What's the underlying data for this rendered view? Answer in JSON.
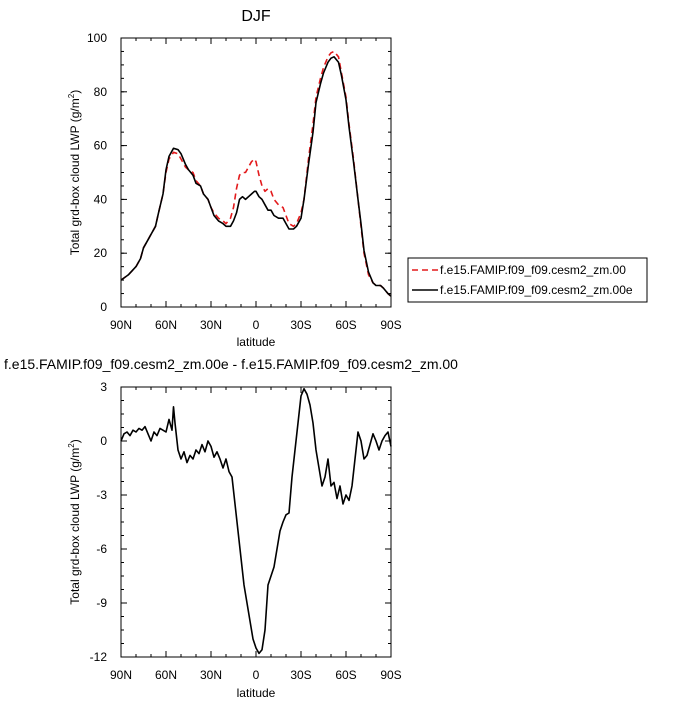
{
  "chart_data": [
    {
      "type": "line",
      "title": "DJF",
      "xlabel": "latitude",
      "ylabel": "Total grd-box cloud LWP (g/m",
      "ylabel_sup": "2",
      "ylabel_end": ")",
      "xlim": [
        90,
        -90
      ],
      "ylim": [
        0,
        100
      ],
      "x_ticks": [
        90,
        60,
        30,
        0,
        -30,
        -60,
        -90
      ],
      "x_tick_labels": [
        "90N",
        "60N",
        "30N",
        "0",
        "30S",
        "60S",
        "90S"
      ],
      "y_ticks": [
        0,
        20,
        40,
        60,
        80,
        100
      ],
      "y_tick_labels": [
        "0",
        "20",
        "40",
        "60",
        "80",
        "100"
      ],
      "legend_placement": "right",
      "series": [
        {
          "name": "f.e15.FAMIP.f09_f09.cesm2_zm.00",
          "color": "#e31a1c",
          "dash": "dashed",
          "x": [
            90,
            85,
            80,
            77,
            75,
            72,
            70,
            67,
            65,
            62,
            60,
            58,
            55,
            52,
            50,
            47,
            45,
            42,
            40,
            37,
            35,
            32,
            30,
            28,
            25,
            22,
            20,
            17,
            15,
            13,
            11,
            9,
            7,
            5,
            3,
            1,
            0,
            -2,
            -4,
            -6,
            -8,
            -10,
            -12,
            -15,
            -18,
            -20,
            -22,
            -25,
            -27,
            -30,
            -32,
            -35,
            -38,
            -40,
            -43,
            -45,
            -48,
            -50,
            -52,
            -55,
            -57,
            -60,
            -62,
            -65,
            -68,
            -70,
            -72,
            -75,
            -78,
            -80,
            -83,
            -85,
            -88,
            -90
          ],
          "y": [
            10,
            12,
            15,
            18,
            22,
            25,
            27,
            30,
            35,
            42,
            50,
            55,
            57.5,
            57,
            55,
            52,
            51,
            50,
            47,
            45,
            42,
            40,
            37,
            35,
            33,
            32,
            31,
            33,
            37,
            44,
            49,
            50,
            50,
            52,
            54,
            55,
            54,
            49,
            45,
            43,
            44,
            43,
            40,
            38,
            37,
            34,
            31,
            30,
            31,
            35,
            40,
            55,
            68,
            78,
            85,
            89,
            93,
            94.5,
            95,
            93,
            87,
            78,
            68,
            55,
            40,
            30,
            20,
            12,
            9,
            8,
            8,
            7,
            5,
            4
          ]
        },
        {
          "name": "f.e15.FAMIP.f09_f09.cesm2_zm.00e",
          "color": "#000000",
          "dash": "solid",
          "x": [
            90,
            85,
            80,
            77,
            75,
            72,
            70,
            67,
            65,
            62,
            60,
            58,
            55,
            52,
            50,
            47,
            45,
            42,
            40,
            37,
            35,
            32,
            30,
            28,
            25,
            22,
            20,
            17,
            15,
            13,
            11,
            9,
            7,
            5,
            3,
            1,
            0,
            -2,
            -4,
            -6,
            -8,
            -10,
            -12,
            -15,
            -18,
            -20,
            -22,
            -25,
            -27,
            -30,
            -32,
            -35,
            -38,
            -40,
            -43,
            -45,
            -48,
            -50,
            -52,
            -55,
            -57,
            -60,
            -62,
            -65,
            -68,
            -70,
            -72,
            -75,
            -78,
            -80,
            -83,
            -85,
            -88,
            -90
          ],
          "y": [
            10,
            12,
            15,
            18,
            22,
            25,
            27,
            30,
            35,
            42,
            51,
            56,
            59,
            58.5,
            57,
            53,
            51,
            49,
            46,
            45,
            42,
            40,
            37,
            34,
            32,
            31,
            30,
            30,
            32,
            35,
            40,
            41,
            40,
            41,
            42,
            43,
            43,
            41,
            40,
            38,
            36,
            36,
            34,
            33,
            33,
            31,
            29,
            29,
            30,
            33,
            40,
            53,
            65,
            76,
            83,
            87,
            91,
            92.5,
            93,
            91,
            86,
            77,
            67,
            54,
            40,
            31,
            21,
            13,
            9,
            8,
            8,
            7,
            5,
            4
          ]
        }
      ]
    },
    {
      "type": "line",
      "title": "f.e15.FAMIP.f09_f09.cesm2_zm.00e - f.e15.FAMIP.f09_f09.cesm2_zm.00",
      "xlabel": "latitude",
      "ylabel": "Total grd-box cloud LWP (g/m",
      "ylabel_sup": "2",
      "ylabel_end": ")",
      "xlim": [
        90,
        -90
      ],
      "ylim": [
        -12,
        3
      ],
      "x_ticks": [
        90,
        60,
        30,
        0,
        -30,
        -60,
        -90
      ],
      "x_tick_labels": [
        "90N",
        "60N",
        "30N",
        "0",
        "30S",
        "60S",
        "90S"
      ],
      "y_ticks": [
        -12,
        -9,
        -6,
        -3,
        0,
        3
      ],
      "y_tick_labels": [
        "-12",
        "-9",
        "-6",
        "-3",
        "0",
        "3"
      ],
      "series": [
        {
          "color": "#000000",
          "dash": "solid",
          "x": [
            90,
            88,
            86,
            84,
            82,
            80,
            78,
            76,
            74,
            72,
            70,
            68,
            66,
            64,
            62,
            60,
            58,
            56,
            55,
            54,
            52,
            50,
            48,
            46,
            44,
            42,
            40,
            38,
            36,
            34,
            32,
            30,
            28,
            26,
            24,
            22,
            20,
            18,
            16,
            14,
            12,
            10,
            8,
            6,
            4,
            2,
            0,
            -2,
            -4,
            -6,
            -8,
            -10,
            -12,
            -14,
            -16,
            -18,
            -20,
            -22,
            -24,
            -26,
            -28,
            -30,
            -32,
            -34,
            -36,
            -38,
            -40,
            -42,
            -44,
            -46,
            -48,
            -50,
            -52,
            -54,
            -56,
            -58,
            -60,
            -62,
            -64,
            -66,
            -68,
            -70,
            -72,
            -74,
            -76,
            -78,
            -80,
            -82,
            -84,
            -86,
            -88,
            -90
          ],
          "y": [
            0,
            0.4,
            0.5,
            0.3,
            0.6,
            0.5,
            0.7,
            0.6,
            0.8,
            0.4,
            0.0,
            0.5,
            0.3,
            0.7,
            0.6,
            0.5,
            1.2,
            0.6,
            1.9,
            1.0,
            -0.5,
            -1.0,
            -0.6,
            -1.2,
            -0.8,
            -1.0,
            -0.5,
            -0.7,
            -0.2,
            -0.6,
            0.0,
            -0.3,
            -0.9,
            -0.6,
            -1.0,
            -1.5,
            -1.0,
            -1.7,
            -2.0,
            -3.5,
            -5.0,
            -6.5,
            -8.0,
            -9.0,
            -10.0,
            -11.0,
            -11.5,
            -11.8,
            -11.6,
            -10.5,
            -8.0,
            -7.5,
            -7.0,
            -6.0,
            -5.0,
            -4.5,
            -4.1,
            -4.0,
            -2.0,
            -0.5,
            1.0,
            2.5,
            2.9,
            2.6,
            2.0,
            1.0,
            -0.5,
            -1.5,
            -2.5,
            -2.0,
            -1.0,
            -2.5,
            -2.3,
            -3.2,
            -2.5,
            -3.5,
            -3.0,
            -3.3,
            -2.5,
            -1.0,
            0.5,
            0.0,
            -1.0,
            -0.8,
            -0.2,
            0.4,
            0.0,
            -0.5,
            0.0,
            0.3,
            0.5,
            -0.3
          ]
        }
      ]
    }
  ]
}
